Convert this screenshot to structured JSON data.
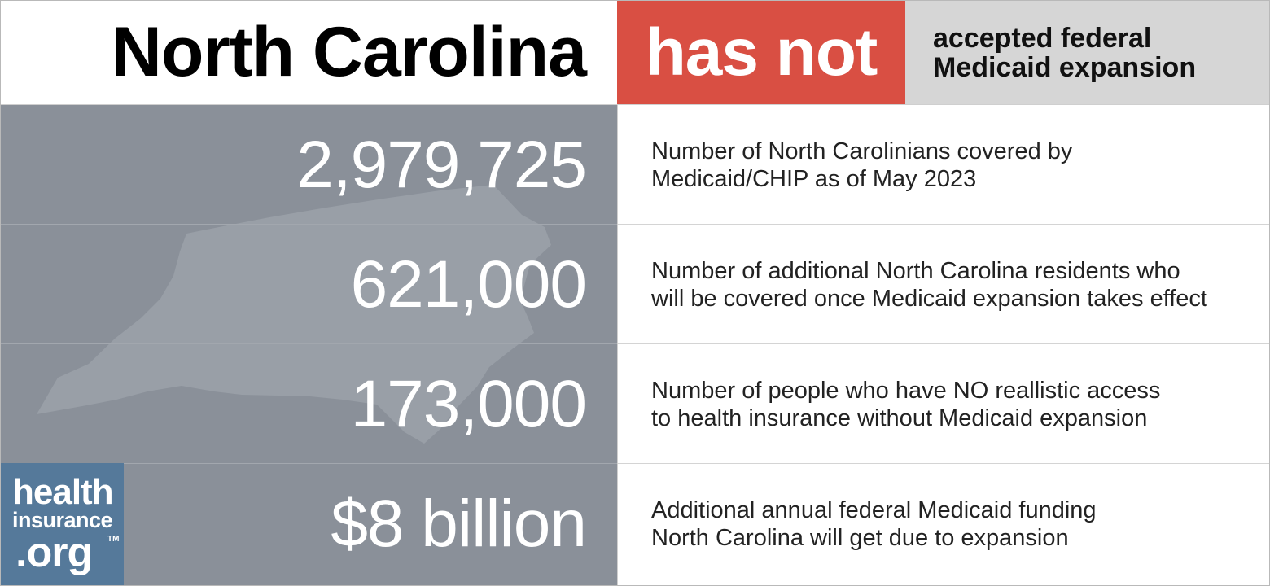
{
  "header": {
    "state": "North Carolina",
    "status": "has not",
    "status_desc_line1": "accepted federal",
    "status_desc_line2": "Medicaid expansion"
  },
  "stats": [
    {
      "value": "2,979,725",
      "line1": "Number of North Carolinians covered by",
      "line2": "Medicaid/CHIP as of May 2023"
    },
    {
      "value": "621,000",
      "line1": "Number of additional North Carolina residents who",
      "line2": "will be covered once Medicaid expansion takes effect"
    },
    {
      "value": "173,000",
      "line1": "Number of people who have NO reallistic access",
      "line2": "to health insurance without Medicaid expansion"
    },
    {
      "value": "$8 billion",
      "line1": "Additional annual federal Medicaid funding",
      "line2": "North Carolina will get due to expansion"
    }
  ],
  "logo": {
    "line1": "health",
    "line2": "insurance",
    "line3": ".org",
    "tm": "TM"
  },
  "colors": {
    "status_red": "#d94f43",
    "left_panel_gray": "#8a9099",
    "header_gray": "#d6d6d6",
    "logo_blue": "#55799a"
  },
  "icons": {
    "state_silhouette": "north-carolina-map-icon"
  }
}
